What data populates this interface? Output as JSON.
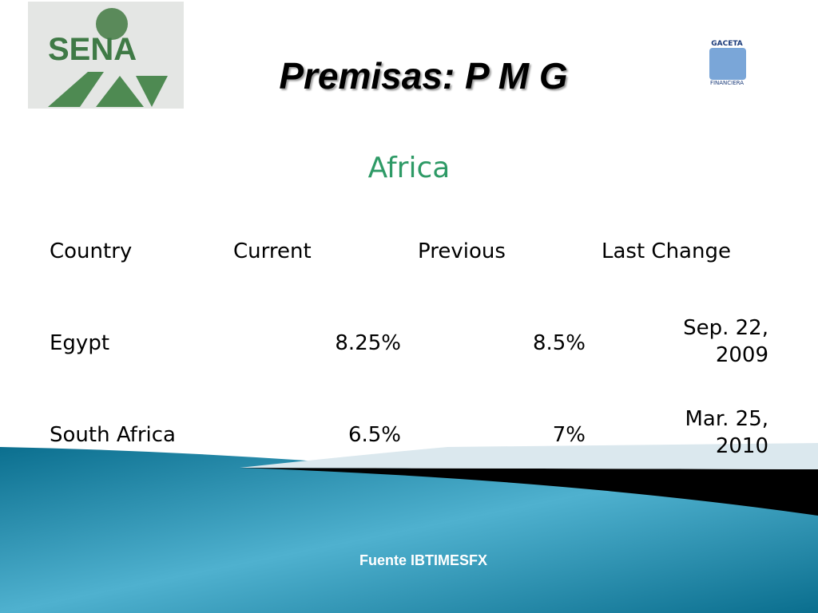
{
  "header": {
    "title": "Premisas: P M G",
    "logo_left": "SENA",
    "logo_right_top": "GACETA",
    "logo_right_bottom": "FINANCIERA"
  },
  "subtitle": "Africa",
  "table": {
    "columns": [
      "Country",
      "Current",
      "Previous",
      "Last Change"
    ],
    "rows": [
      [
        "Egypt",
        "8.25%",
        "8.5%",
        "Sep. 22, 2009"
      ],
      [
        "South Africa",
        "6.5%",
        "7%",
        "Mar. 25, 2010"
      ]
    ]
  },
  "footer": {
    "source": "Fuente IBTIMESFX"
  }
}
